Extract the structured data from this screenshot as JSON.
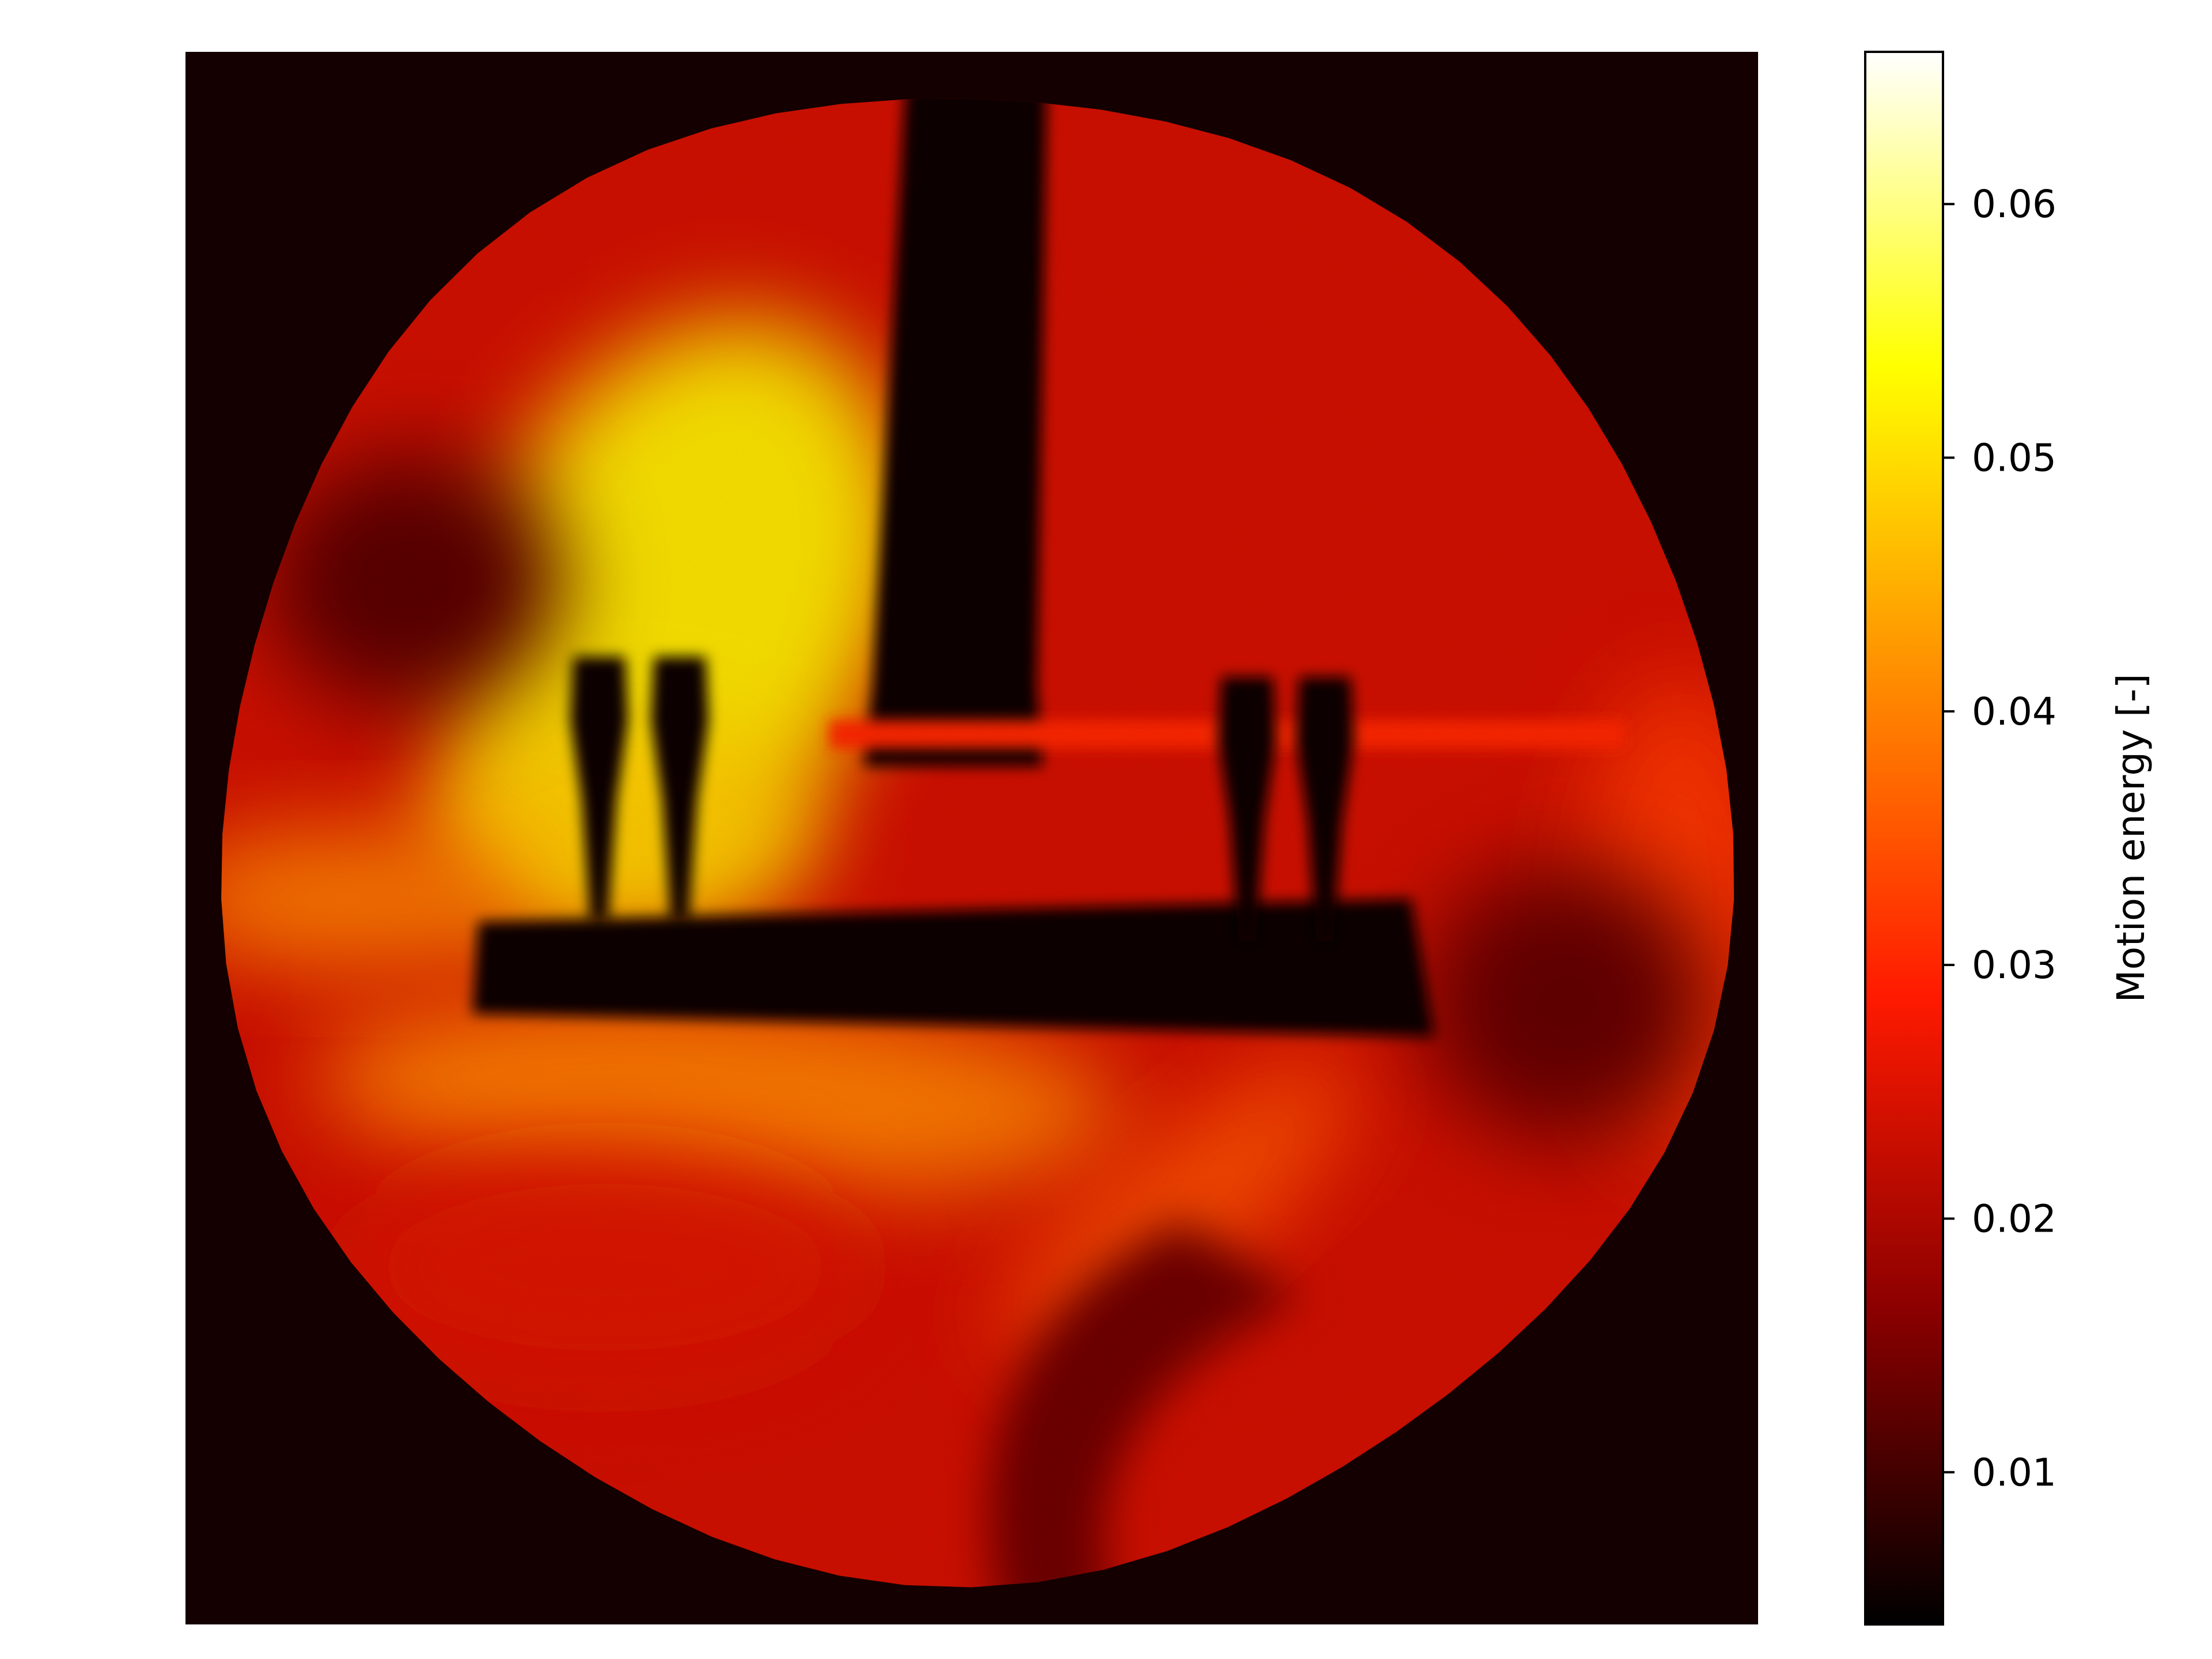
{
  "chart_data": {
    "type": "heatmap",
    "title": "",
    "xlabel": "",
    "ylabel": "",
    "axes_visible": false,
    "colormap": "hot",
    "colorbar": {
      "label": "Motion energy [-]",
      "vmin": 0.004,
      "vmax": 0.066,
      "ticks": [
        0.01,
        0.02,
        0.03,
        0.04,
        0.05,
        0.06
      ],
      "tick_labels": [
        "0.01",
        "0.02",
        "0.03",
        "0.04",
        "0.05",
        "0.06"
      ],
      "colors": [
        "#000000",
        "#8b0000",
        "#ff1a00",
        "#ff8c00",
        "#ffff00",
        "#ffffff"
      ]
    },
    "field_description_values": {
      "background_outside_disk": 0.006,
      "disk_mean": 0.024,
      "hotspot_left_upper": 0.052,
      "hotspot_left_mid": 0.048,
      "band_lower": 0.04,
      "plume_lower_right": 0.035,
      "right_edge": 0.032,
      "objects_shadow": 0.005
    }
  }
}
